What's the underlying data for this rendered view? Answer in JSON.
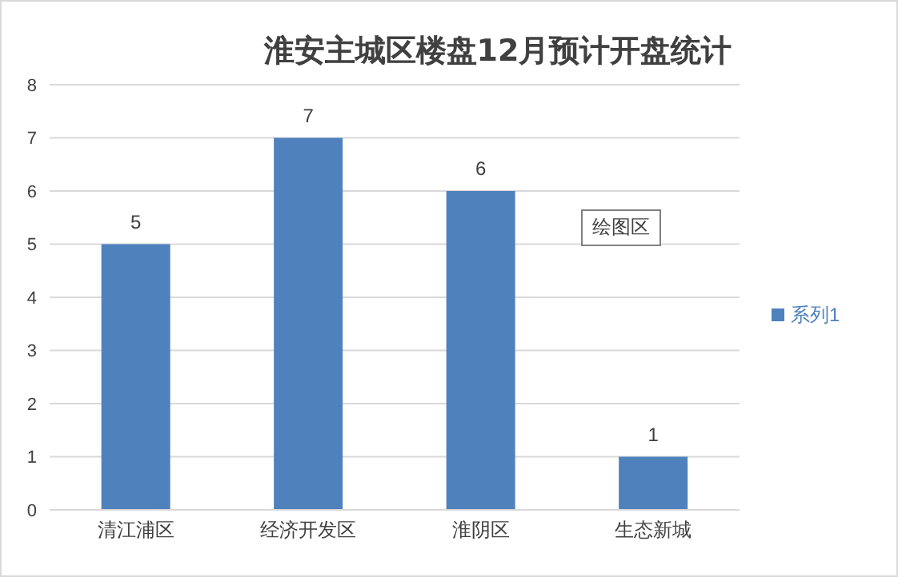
{
  "chart_data": {
    "type": "bar",
    "title": "淮安主城区楼盘12月预计开盘统计",
    "categories": [
      "清江浦区",
      "经济开发区",
      "淮阴区",
      "生态新城"
    ],
    "series": [
      {
        "name": "系列1",
        "color": "#4f81bd",
        "values": [
          5,
          7,
          6,
          1
        ]
      }
    ],
    "ylim": [
      0,
      8
    ],
    "yticks": [
      0,
      1,
      2,
      3,
      4,
      5,
      6,
      7,
      8
    ],
    "grid": "y",
    "legend": "right",
    "data_labels": true,
    "annotations": [
      "绘图区"
    ]
  }
}
